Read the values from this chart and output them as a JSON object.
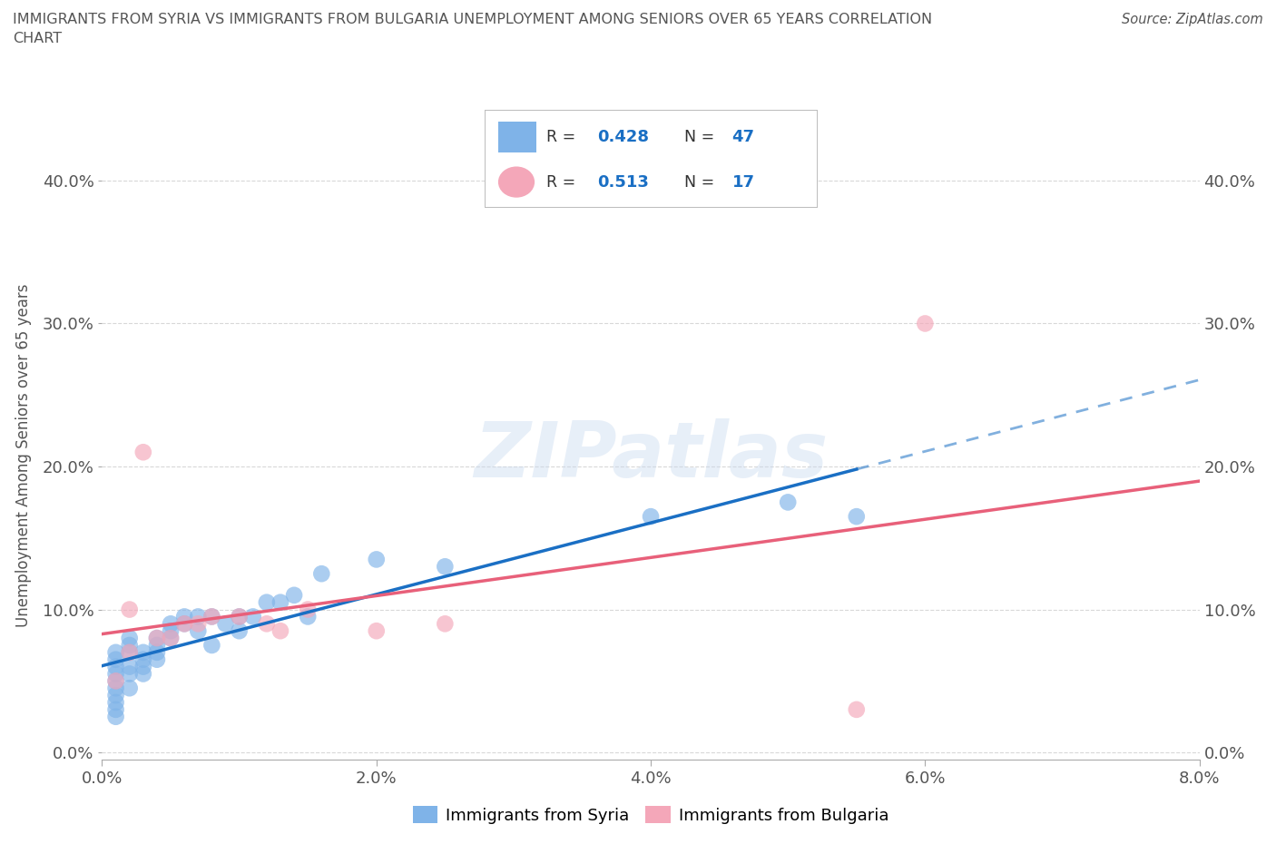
{
  "title_line1": "IMMIGRANTS FROM SYRIA VS IMMIGRANTS FROM BULGARIA UNEMPLOYMENT AMONG SENIORS OVER 65 YEARS CORRELATION",
  "title_line2": "CHART",
  "source": "Source: ZipAtlas.com",
  "ylabel": "Unemployment Among Seniors over 65 years",
  "watermark": "ZIPatlas",
  "xlim": [
    0.0,
    0.08
  ],
  "ylim": [
    -0.005,
    0.42
  ],
  "xticks": [
    0.0,
    0.02,
    0.04,
    0.06,
    0.08
  ],
  "yticks": [
    0.0,
    0.1,
    0.2,
    0.3,
    0.4
  ],
  "xtick_labels": [
    "0.0%",
    "2.0%",
    "4.0%",
    "6.0%",
    "8.0%"
  ],
  "ytick_labels": [
    "0.0%",
    "10.0%",
    "20.0%",
    "30.0%",
    "40.0%"
  ],
  "syria_color": "#7fb3e8",
  "bulgaria_color": "#f4a7b9",
  "syria_line_color": "#1a6fc4",
  "bulgaria_line_color": "#e8607a",
  "legend_val_color": "#1a6fc4",
  "R_syria": "0.428",
  "N_syria": "47",
  "R_bulgaria": "0.513",
  "N_bulgaria": "17",
  "syria_x": [
    0.001,
    0.001,
    0.001,
    0.001,
    0.001,
    0.001,
    0.001,
    0.001,
    0.001,
    0.001,
    0.002,
    0.002,
    0.002,
    0.002,
    0.002,
    0.002,
    0.003,
    0.003,
    0.003,
    0.003,
    0.004,
    0.004,
    0.004,
    0.004,
    0.005,
    0.005,
    0.005,
    0.006,
    0.006,
    0.007,
    0.007,
    0.008,
    0.008,
    0.009,
    0.01,
    0.01,
    0.011,
    0.012,
    0.013,
    0.014,
    0.015,
    0.016,
    0.02,
    0.025,
    0.04,
    0.05,
    0.055
  ],
  "syria_y": [
    0.04,
    0.045,
    0.05,
    0.055,
    0.06,
    0.065,
    0.07,
    0.035,
    0.03,
    0.025,
    0.045,
    0.055,
    0.06,
    0.07,
    0.08,
    0.075,
    0.06,
    0.065,
    0.07,
    0.055,
    0.065,
    0.07,
    0.08,
    0.075,
    0.08,
    0.085,
    0.09,
    0.09,
    0.095,
    0.085,
    0.095,
    0.095,
    0.075,
    0.09,
    0.095,
    0.085,
    0.095,
    0.105,
    0.105,
    0.11,
    0.095,
    0.125,
    0.135,
    0.13,
    0.165,
    0.175,
    0.165
  ],
  "bulgaria_x": [
    0.001,
    0.002,
    0.002,
    0.003,
    0.004,
    0.005,
    0.006,
    0.007,
    0.008,
    0.01,
    0.012,
    0.013,
    0.015,
    0.02,
    0.025,
    0.055,
    0.06
  ],
  "bulgaria_y": [
    0.05,
    0.07,
    0.1,
    0.21,
    0.08,
    0.08,
    0.09,
    0.09,
    0.095,
    0.095,
    0.09,
    0.085,
    0.1,
    0.085,
    0.09,
    0.03,
    0.3
  ],
  "background_color": "#ffffff",
  "grid_color": "#d8d8d8",
  "title_color": "#555555",
  "tick_color": "#555555",
  "label_color": "#555555"
}
